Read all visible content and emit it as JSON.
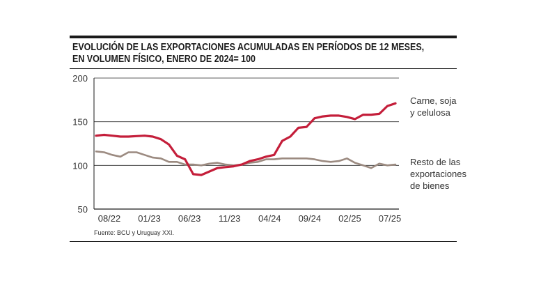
{
  "chart_data": {
    "type": "line",
    "title_line1": "EVOLUCIÓN DE LAS EXPORTACIONES ACUMULADAS EN PERÍODOS DE 12 MESES,",
    "title_line2": "EN VOLUMEN FÍSICO, ENERO DE 2024= 100",
    "source": "Fuente: BCU y Uruguay XXI.",
    "ylim": [
      50,
      200
    ],
    "yticks": [
      50,
      100,
      150,
      200
    ],
    "xlabels": [
      "08/22",
      "01/23",
      "06/23",
      "11/23",
      "04/24",
      "09/24",
      "02/25",
      "07/25"
    ],
    "colors": {
      "red": "#c41e3a",
      "brown": "#9b8a80",
      "grid": "#2a2a2a"
    },
    "series": [
      {
        "name_lines": [
          "Carne, soja",
          "y celulosa"
        ],
        "color": "#c41e3a",
        "values": [
          134,
          135,
          134,
          133,
          133,
          133.5,
          134,
          133,
          130,
          124,
          111,
          107,
          90,
          89,
          93,
          97,
          98,
          99,
          101,
          105,
          107,
          110,
          112,
          128,
          133,
          143,
          144,
          154,
          156,
          157,
          157,
          155.5,
          153,
          158,
          158,
          159,
          168,
          171
        ]
      },
      {
        "name_lines": [
          "Resto de las",
          "exportaciones",
          "de bienes"
        ],
        "color": "#9b8a80",
        "values": [
          116,
          115,
          112,
          110,
          115,
          115,
          112,
          109,
          108,
          104,
          104,
          101,
          101,
          100,
          102,
          103,
          101,
          100,
          101,
          103,
          104,
          107,
          107,
          108,
          108,
          108,
          108,
          107,
          105,
          104,
          105,
          108,
          103,
          100,
          97,
          102,
          100,
          101
        ]
      }
    ]
  }
}
